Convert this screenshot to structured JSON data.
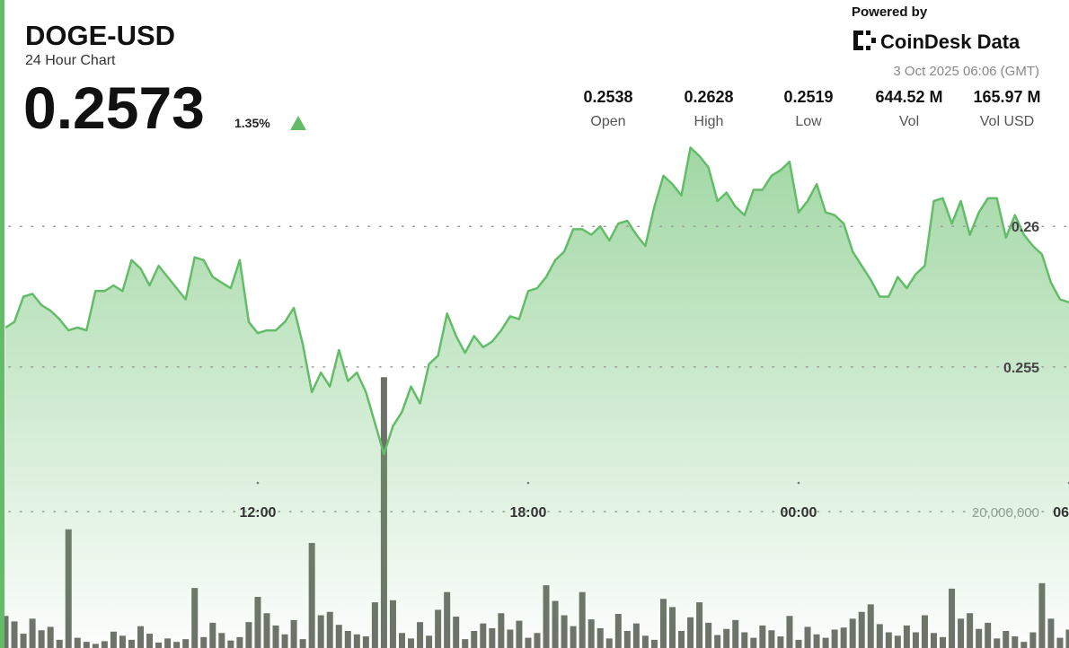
{
  "header": {
    "symbol": "DOGE-USD",
    "subtitle": "24 Hour Chart",
    "price": "0.2573",
    "change": "1.35%",
    "powered_by": "Powered by",
    "brand": "CoinDesk Data",
    "timestamp": "3 Oct 2025 06:06 (GMT)"
  },
  "stats": [
    {
      "value": "0.2538",
      "label": "Open"
    },
    {
      "value": "0.2628",
      "label": "High"
    },
    {
      "value": "0.2519",
      "label": "Low"
    },
    {
      "value": "644.52 M",
      "label": "Vol"
    },
    {
      "value": "165.97 M",
      "label": "Vol USD"
    }
  ],
  "chart_data": [
    {
      "type": "line",
      "color": "#63bd68",
      "categories": [
        null,
        null,
        null,
        null,
        null,
        null,
        null,
        null,
        null,
        null,
        null,
        null,
        null,
        null,
        null,
        null,
        null,
        null,
        null,
        null,
        null,
        null,
        null,
        null,
        null,
        null,
        null,
        null,
        "12:00",
        null,
        null,
        null,
        null,
        null,
        null,
        null,
        null,
        null,
        null,
        null,
        null,
        null,
        null,
        null,
        null,
        null,
        null,
        null,
        null,
        null,
        null,
        null,
        null,
        null,
        null,
        null,
        null,
        null,
        "18:00",
        null,
        null,
        null,
        null,
        null,
        null,
        null,
        null,
        null,
        null,
        null,
        null,
        null,
        null,
        null,
        null,
        null,
        null,
        null,
        null,
        null,
        null,
        null,
        null,
        null,
        null,
        null,
        null,
        null,
        "00:00",
        null,
        null,
        null,
        null,
        null,
        null,
        null,
        null,
        null,
        null,
        null,
        null,
        null,
        null,
        null,
        null,
        null,
        null,
        null,
        null,
        null,
        null,
        null,
        null,
        null,
        null,
        null,
        null,
        null,
        "06"
      ],
      "values": [
        0.2564,
        0.2566,
        0.2575,
        0.2576,
        0.2572,
        0.257,
        0.2567,
        0.2563,
        0.2564,
        0.2563,
        0.2577,
        0.2577,
        0.2579,
        0.2577,
        0.2588,
        0.2585,
        0.2579,
        0.2586,
        0.2582,
        0.2578,
        0.2574,
        0.2589,
        0.2588,
        0.2582,
        0.258,
        0.2578,
        0.2588,
        0.2566,
        0.2562,
        0.2563,
        0.2563,
        0.2566,
        0.2571,
        0.2558,
        0.2541,
        0.2548,
        0.2543,
        0.2556,
        0.2545,
        0.2548,
        0.2541,
        0.253,
        0.2519,
        0.2529,
        0.2534,
        0.2543,
        0.2537,
        0.2551,
        0.2554,
        0.2569,
        0.2561,
        0.2555,
        0.2561,
        0.2557,
        0.2559,
        0.2563,
        0.2568,
        0.2567,
        0.2577,
        0.2578,
        0.2582,
        0.2588,
        0.2591,
        0.2599,
        0.2599,
        0.2597,
        0.26,
        0.2595,
        0.2601,
        0.2602,
        0.2597,
        0.2593,
        0.2607,
        0.2618,
        0.2615,
        0.2611,
        0.2628,
        0.2625,
        0.2621,
        0.2609,
        0.2612,
        0.2607,
        0.2604,
        0.2613,
        0.2613,
        0.2618,
        0.262,
        0.2623,
        0.2605,
        0.2609,
        0.2615,
        0.2605,
        0.2604,
        0.2601,
        0.2591,
        0.2586,
        0.2581,
        0.2575,
        0.2575,
        0.2582,
        0.2578,
        0.2583,
        0.2586,
        0.2609,
        0.261,
        0.2601,
        0.2609,
        0.2597,
        0.2605,
        0.261,
        0.261,
        0.2596,
        0.2604,
        0.2597,
        0.2593,
        0.259,
        0.258,
        0.2574,
        0.2573
      ],
      "ylim": [
        0.245,
        0.2632
      ],
      "yticks": [
        0.255,
        0.26
      ],
      "grid": true
    },
    {
      "type": "bar",
      "color": "#53584f",
      "values": [
        4700000,
        3900000,
        2100000,
        4300000,
        2600000,
        3100000,
        1200000,
        17400000,
        1500000,
        900000,
        600000,
        1000000,
        2400000,
        1800000,
        1200000,
        3200000,
        2100000,
        800000,
        1400000,
        900000,
        1300000,
        8800000,
        1600000,
        3700000,
        2200000,
        1100000,
        1600000,
        3800000,
        7500000,
        5100000,
        3300000,
        2000000,
        4100000,
        1300000,
        15400000,
        4800000,
        5300000,
        3400000,
        2500000,
        2000000,
        1700000,
        6700000,
        39700000,
        7000000,
        2200000,
        1400000,
        3800000,
        1800000,
        5600000,
        8200000,
        4600000,
        1300000,
        2500000,
        3600000,
        2900000,
        5100000,
        2700000,
        4000000,
        1500000,
        2200000,
        9200000,
        6900000,
        4800000,
        3200000,
        8200000,
        4200000,
        2900000,
        1400000,
        5000000,
        2500000,
        3600000,
        1800000,
        1200000,
        7200000,
        6000000,
        2500000,
        4500000,
        6700000,
        3700000,
        1900000,
        2800000,
        4100000,
        2300000,
        1500000,
        3300000,
        2600000,
        1700000,
        4700000,
        1200000,
        3100000,
        2000000,
        1500000,
        2700000,
        3000000,
        4300000,
        5300000,
        6400000,
        3500000,
        2300000,
        1800000,
        3300000,
        2300000,
        4800000,
        2200000,
        1600000,
        8700000,
        4300000,
        5100000,
        2800000,
        3700000,
        1400000,
        2500000,
        1700000,
        900000,
        2300000,
        9500000,
        4300000,
        1500000,
        2700000
      ],
      "ylim": [
        0,
        75000000
      ],
      "yticks": [
        {
          "value": 20000000,
          "label": "20,000,000"
        }
      ],
      "grid": true
    }
  ]
}
